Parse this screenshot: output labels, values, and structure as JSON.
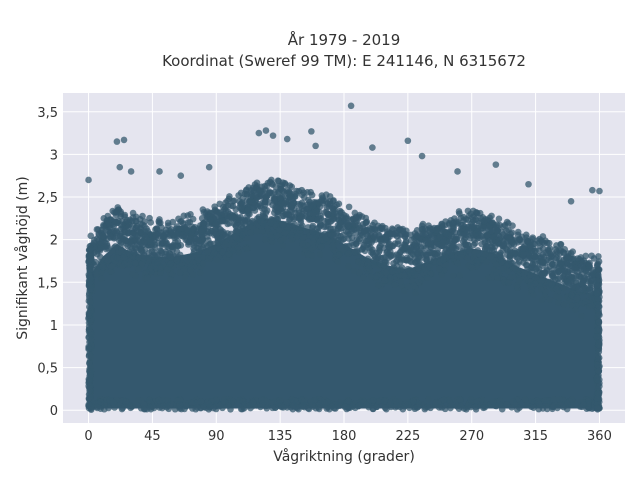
{
  "chart_data": {
    "type": "scatter",
    "title_lines": [
      "År 1979 - 2019",
      "Koordinat (Sweref 99 TM): E 241146, N 6315672"
    ],
    "xlabel": "Vågriktning (grader)",
    "ylabel": "Signifikant våghöjd (m)",
    "xlim": [
      -18,
      378
    ],
    "ylim": [
      -0.15,
      3.72
    ],
    "x_ticks": [
      0,
      45,
      90,
      135,
      180,
      225,
      270,
      315,
      360
    ],
    "x_tick_labels": [
      "0",
      "45",
      "90",
      "135",
      "180",
      "225",
      "270",
      "315",
      "360"
    ],
    "y_ticks": [
      0,
      0.5,
      1,
      1.5,
      2,
      2.5,
      3,
      3.5
    ],
    "y_tick_labels": [
      "0",
      "0,5",
      "1",
      "1,5",
      "2",
      "2,5",
      "3",
      "3,5"
    ],
    "grid": true,
    "marker_color": "#34586e",
    "background_color": "#e5e5ef",
    "envelope": {
      "x": [
        0,
        10,
        20,
        30,
        45,
        60,
        75,
        90,
        100,
        110,
        120,
        130,
        140,
        150,
        160,
        170,
        180,
        195,
        210,
        225,
        240,
        255,
        270,
        285,
        300,
        315,
        330,
        345,
        360
      ],
      "y_max_dense": [
        1.9,
        2.15,
        2.3,
        2.2,
        2.15,
        2.15,
        2.2,
        2.3,
        2.4,
        2.5,
        2.6,
        2.6,
        2.55,
        2.5,
        2.45,
        2.4,
        2.3,
        2.15,
        2.05,
        2.0,
        2.1,
        2.2,
        2.25,
        2.2,
        2.05,
        1.95,
        1.85,
        1.75,
        1.7
      ]
    },
    "outliers": [
      {
        "x": 0,
        "y": 2.7
      },
      {
        "x": 20,
        "y": 3.15
      },
      {
        "x": 25,
        "y": 3.17
      },
      {
        "x": 22,
        "y": 2.85
      },
      {
        "x": 30,
        "y": 2.8
      },
      {
        "x": 50,
        "y": 2.8
      },
      {
        "x": 65,
        "y": 2.75
      },
      {
        "x": 85,
        "y": 2.85
      },
      {
        "x": 120,
        "y": 3.25
      },
      {
        "x": 125,
        "y": 3.28
      },
      {
        "x": 130,
        "y": 3.22
      },
      {
        "x": 140,
        "y": 3.18
      },
      {
        "x": 157,
        "y": 3.27
      },
      {
        "x": 160,
        "y": 3.1
      },
      {
        "x": 185,
        "y": 3.57
      },
      {
        "x": 200,
        "y": 3.08
      },
      {
        "x": 225,
        "y": 3.16
      },
      {
        "x": 235,
        "y": 2.98
      },
      {
        "x": 260,
        "y": 2.8
      },
      {
        "x": 287,
        "y": 2.88
      },
      {
        "x": 310,
        "y": 2.65
      },
      {
        "x": 355,
        "y": 2.58
      },
      {
        "x": 360,
        "y": 2.57
      },
      {
        "x": 340,
        "y": 2.45
      }
    ]
  }
}
